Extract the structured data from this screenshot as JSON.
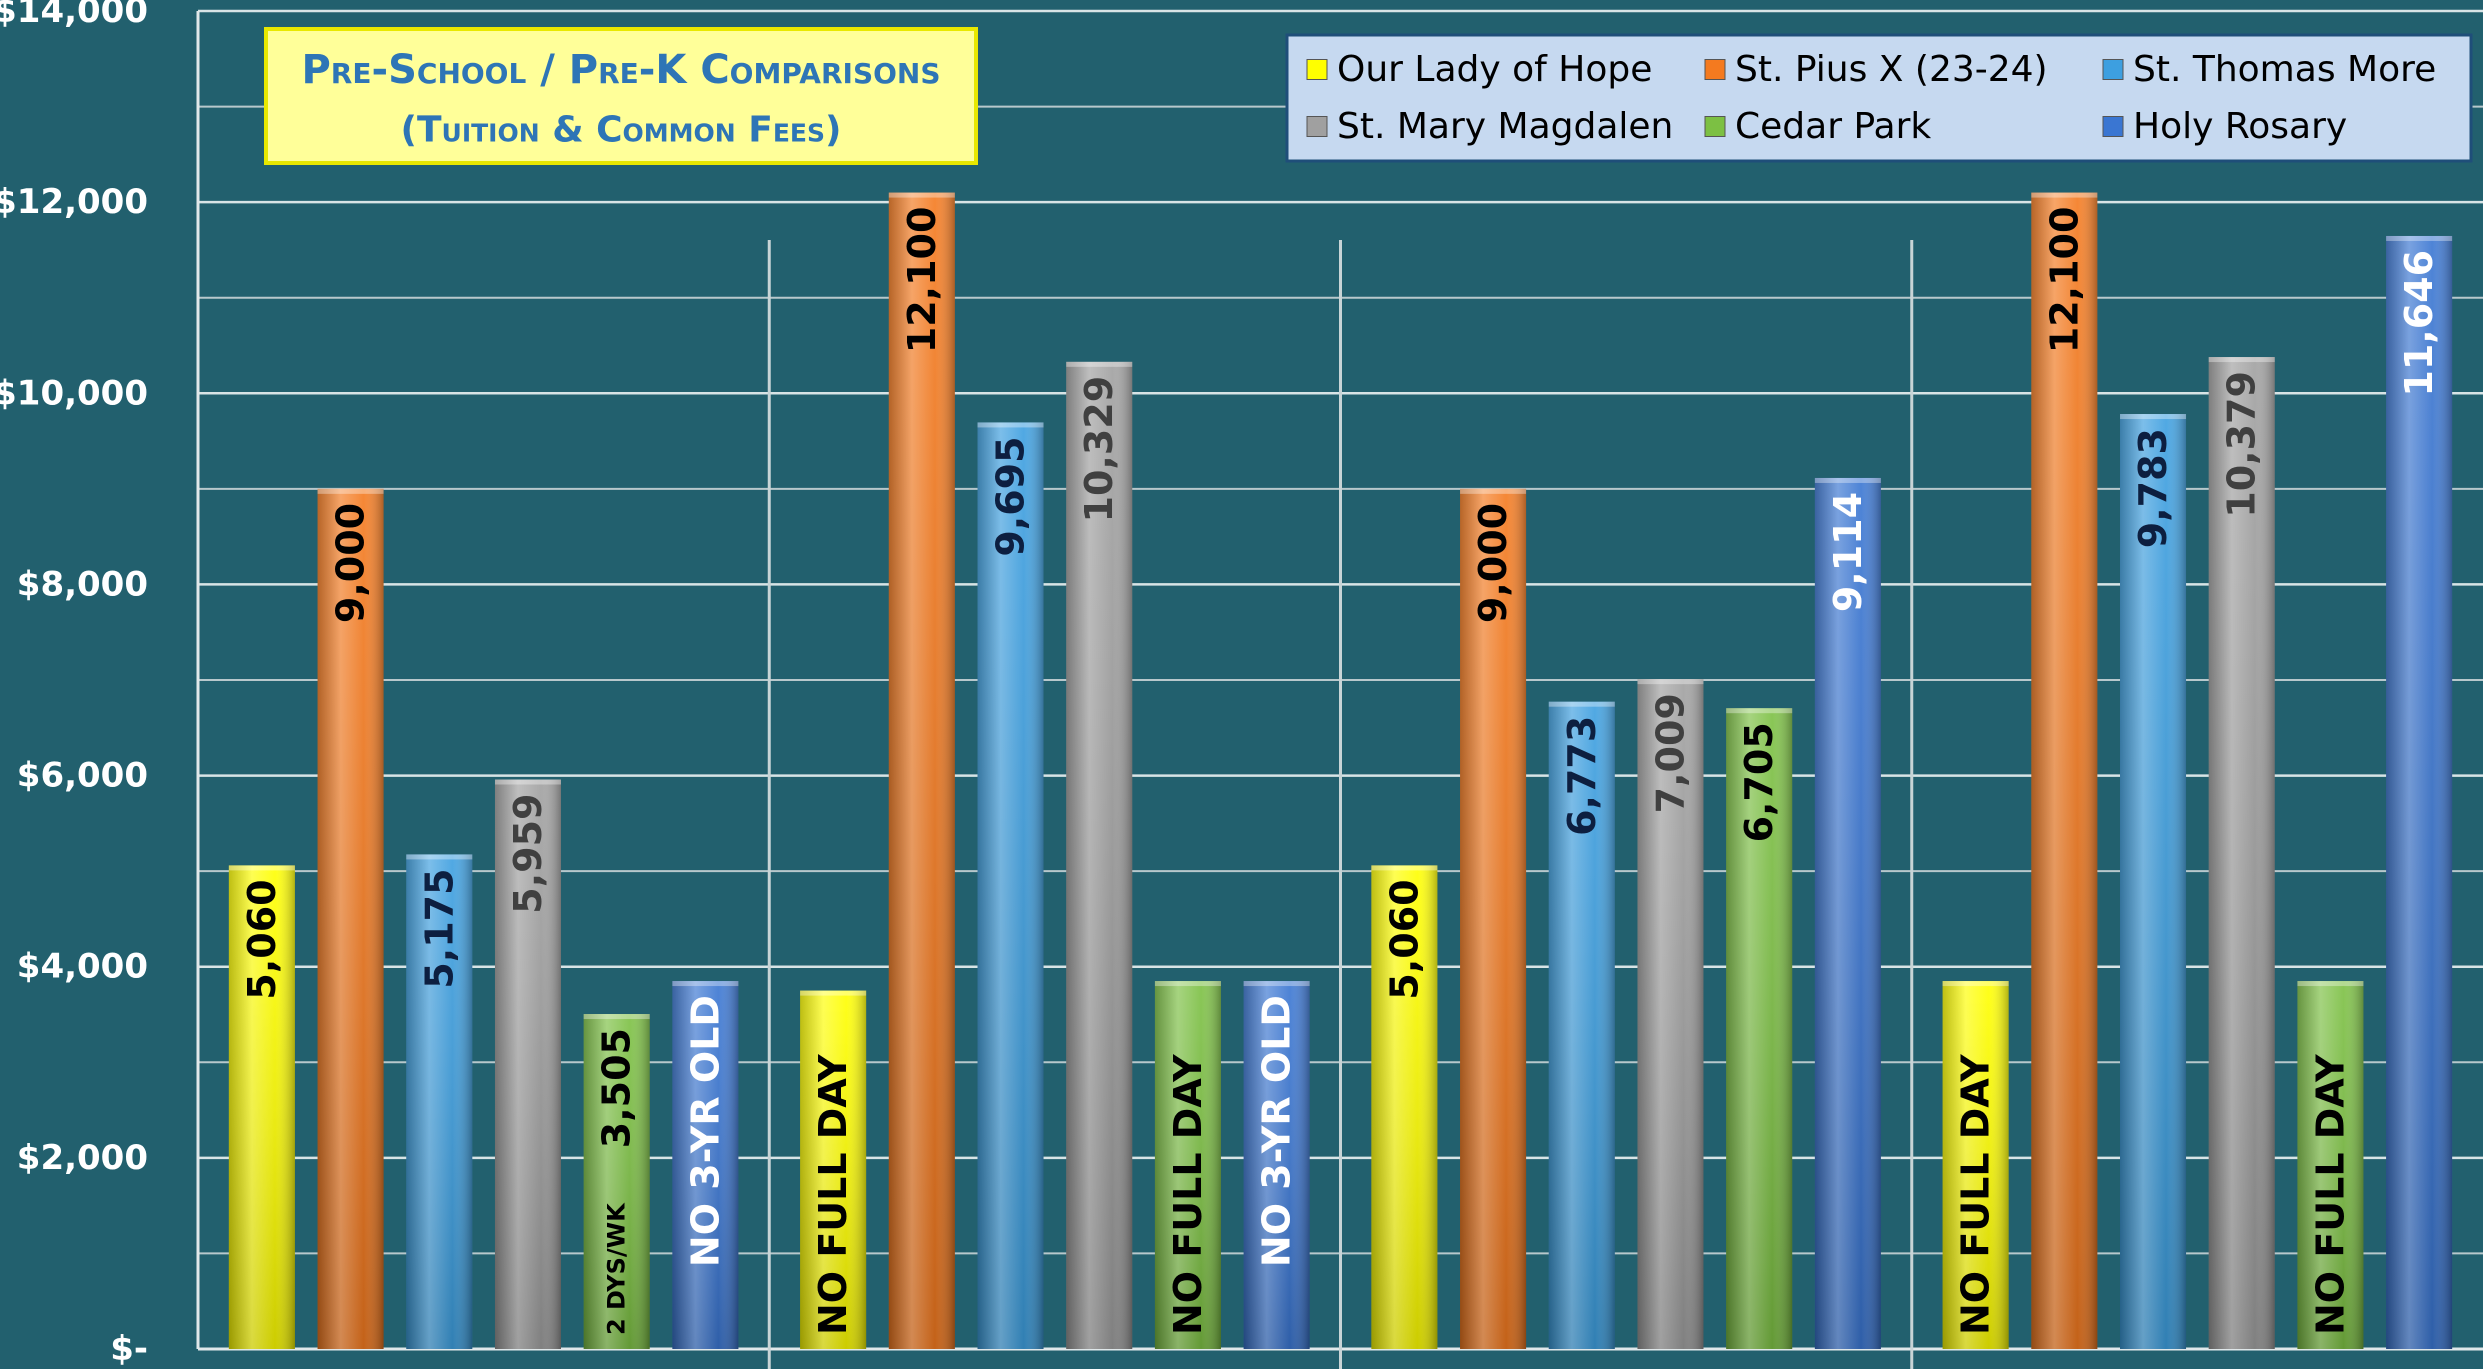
{
  "chart_data": {
    "type": "bar",
    "title": "Pre-School / Pre-K Comparisons",
    "subtitle": "(Tuition & Common Fees)",
    "categories": [
      null,
      null,
      null,
      null
    ],
    "ylim": [
      0,
      14000
    ],
    "yticks": [
      {
        "value": 0,
        "label": "$-"
      },
      {
        "value": 2000,
        "label": "$2,000"
      },
      {
        "value": 4000,
        "label": "$4,000"
      },
      {
        "value": 6000,
        "label": "$6,000"
      },
      {
        "value": 8000,
        "label": "$8,000"
      },
      {
        "value": 10000,
        "label": "$10,000"
      },
      {
        "value": 12000,
        "label": "$12,000"
      },
      {
        "value": 14000,
        "label": "$14,000"
      }
    ],
    "minor_yticks": [
      1000,
      3000,
      5000,
      7000,
      9000,
      11000,
      13000
    ],
    "grid": true,
    "legend_position": "top-right",
    "series": [
      {
        "name": "Our Lady of Hope",
        "color": "#ffff00",
        "label_color": "#000000",
        "values": [
          5060,
          3750,
          5060,
          3850
        ],
        "value_labels": [
          "5,060",
          "NO FULL DAY",
          "5,060",
          "NO FULL DAY"
        ]
      },
      {
        "name": "St. Pius X (23-24)",
        "color": "#f47a1f",
        "label_color": "#000000",
        "values": [
          9000,
          12100,
          9000,
          12100
        ],
        "value_labels": [
          "9,000",
          "12,100",
          "9,000",
          "12,100"
        ]
      },
      {
        "name": "St. Thomas More",
        "color": "#3d9fe0",
        "label_color": "#0d1f40",
        "values": [
          5175,
          9695,
          6773,
          9783
        ],
        "value_labels": [
          "5,175",
          "9,695",
          "6,773",
          "9,783"
        ]
      },
      {
        "name": "St. Mary Magdalen",
        "color": "#a0a0a0",
        "label_color": "#404040",
        "values": [
          5959,
          10329,
          7009,
          10379
        ],
        "value_labels": [
          "5,959",
          "10,329",
          "7,009",
          "10,379"
        ]
      },
      {
        "name": "Cedar Park",
        "color": "#7cc043",
        "label_color": "#000000",
        "values": [
          3505,
          3850,
          6705,
          3850
        ],
        "value_labels": [
          "3,505",
          "NO FULL DAY",
          "6,705",
          "NO FULL DAY"
        ],
        "notes": [
          "2 DYS/WK",
          null,
          null,
          null
        ]
      },
      {
        "name": "Holy Rosary",
        "color": "#3a76d2",
        "label_color": "#ffffff",
        "values": [
          3850,
          3850,
          9114,
          11646
        ],
        "value_labels": [
          "NO 3-YR OLD",
          "NO 3-YR OLD",
          "9,114",
          "11,646"
        ]
      }
    ]
  }
}
